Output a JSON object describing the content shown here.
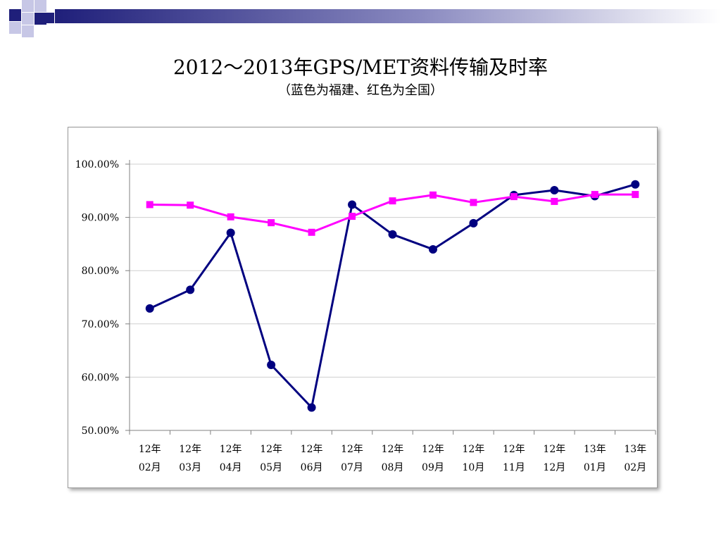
{
  "title": "2012～2013年GPS/MET资料传输及时率",
  "subtitle": "（蓝色为福建、红色为全国）",
  "colors": {
    "fujian": "#000080",
    "national": "#ff00ff",
    "deco_dark": "#1f1f7a",
    "deco_light": "#c7c7e6"
  },
  "chart_data": {
    "type": "line",
    "categories": [
      [
        "12年",
        "02月"
      ],
      [
        "12年",
        "03月"
      ],
      [
        "12年",
        "04月"
      ],
      [
        "12年",
        "05月"
      ],
      [
        "12年",
        "06月"
      ],
      [
        "12年",
        "07月"
      ],
      [
        "12年",
        "08月"
      ],
      [
        "12年",
        "09月"
      ],
      [
        "12年",
        "10月"
      ],
      [
        "12年",
        "11月"
      ],
      [
        "12年",
        "12月"
      ],
      [
        "13年",
        "01月"
      ],
      [
        "13年",
        "02月"
      ]
    ],
    "y_ticks": [
      "100.00%",
      "90.00%",
      "80.00%",
      "70.00%",
      "60.00%",
      "50.00%"
    ],
    "ylim": [
      50,
      100
    ],
    "grid": true,
    "series": [
      {
        "color": "#000080",
        "marker": "circle",
        "values": [
          72.9,
          76.4,
          87.1,
          62.3,
          54.3,
          92.4,
          86.8,
          84.0,
          88.9,
          94.2,
          95.1,
          94.0,
          96.2
        ]
      },
      {
        "color": "#ff00ff",
        "marker": "square",
        "values": [
          92.4,
          92.3,
          90.1,
          89.0,
          87.2,
          90.2,
          93.1,
          94.2,
          92.8,
          93.9,
          93.0,
          94.3,
          94.3
        ]
      }
    ]
  }
}
